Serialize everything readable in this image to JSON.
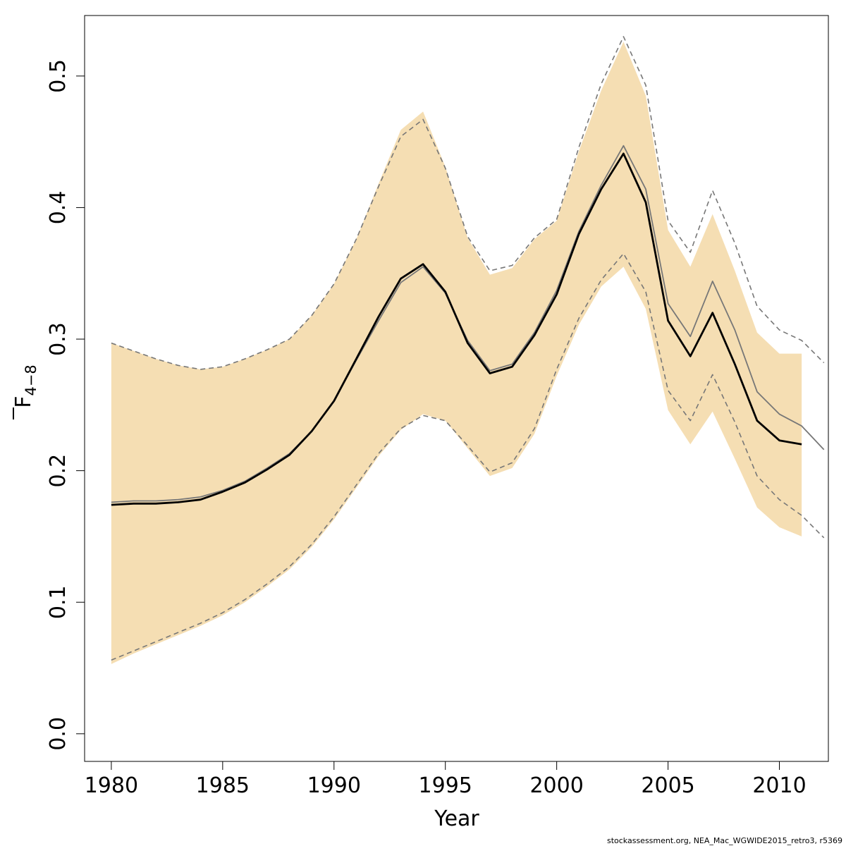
{
  "chart_data": {
    "type": "line",
    "xlabel": "Year",
    "ylabel_main": "F",
    "ylabel_sub": "4−8",
    "footer": "stockassessment.org, NEA_Mac_WGWIDE2015_retro3, r5369",
    "xlim": [
      1978.8,
      2012.2
    ],
    "ylim": [
      -0.021,
      0.546
    ],
    "x_ticks": [
      1980,
      1985,
      1990,
      1995,
      2000,
      2005,
      2010
    ],
    "x_tick_labels": [
      "1980",
      "1985",
      "1990",
      "1995",
      "2000",
      "2005",
      "2010"
    ],
    "y_ticks": [
      0.0,
      0.1,
      0.2,
      0.3,
      0.4,
      0.5
    ],
    "y_tick_labels": [
      "0.0",
      "0.1",
      "0.2",
      "0.3",
      "0.4",
      "0.5"
    ],
    "colors": {
      "band": "#f5deb3",
      "estimate": "#000000",
      "previous": "#777777",
      "previous_ci": "#777777"
    },
    "band": {
      "x": [
        1980,
        1981,
        1982,
        1983,
        1984,
        1985,
        1986,
        1987,
        1988,
        1989,
        1990,
        1991,
        1992,
        1993,
        1994,
        1995,
        1996,
        1997,
        1998,
        1999,
        2000,
        2001,
        2002,
        2003,
        2004,
        2005,
        2006,
        2007,
        2008,
        2009,
        2010,
        2011
      ],
      "lower": [
        0.053,
        0.061,
        0.068,
        0.075,
        0.082,
        0.09,
        0.1,
        0.112,
        0.125,
        0.142,
        0.163,
        0.187,
        0.211,
        0.231,
        0.243,
        0.238,
        0.217,
        0.196,
        0.202,
        0.228,
        0.272,
        0.311,
        0.34,
        0.355,
        0.323,
        0.246,
        0.22,
        0.245,
        0.209,
        0.172,
        0.157,
        0.15
      ],
      "upper": [
        0.297,
        0.291,
        0.285,
        0.28,
        0.277,
        0.279,
        0.285,
        0.292,
        0.3,
        0.318,
        0.342,
        0.376,
        0.418,
        0.459,
        0.473,
        0.431,
        0.377,
        0.349,
        0.354,
        0.376,
        0.39,
        0.443,
        0.489,
        0.526,
        0.485,
        0.383,
        0.355,
        0.395,
        0.352,
        0.305,
        0.289,
        0.289
      ]
    },
    "series": [
      {
        "role": "estimate",
        "x": [
          1980,
          1981,
          1982,
          1983,
          1984,
          1985,
          1986,
          1987,
          1988,
          1989,
          1990,
          1991,
          1992,
          1993,
          1994,
          1995,
          1996,
          1997,
          1998,
          1999,
          2000,
          2001,
          2002,
          2003,
          2004,
          2005,
          2006,
          2007,
          2008,
          2009,
          2010,
          2011
        ],
        "values": [
          0.174,
          0.175,
          0.175,
          0.176,
          0.178,
          0.184,
          0.191,
          0.201,
          0.212,
          0.23,
          0.253,
          0.285,
          0.317,
          0.346,
          0.357,
          0.336,
          0.297,
          0.274,
          0.279,
          0.303,
          0.334,
          0.38,
          0.414,
          0.441,
          0.404,
          0.314,
          0.287,
          0.32,
          0.281,
          0.238,
          0.223,
          0.22
        ]
      },
      {
        "role": "previous",
        "x": [
          1980,
          1981,
          1982,
          1983,
          1984,
          1985,
          1986,
          1987,
          1988,
          1989,
          1990,
          1991,
          1992,
          1993,
          1994,
          1995,
          1996,
          1997,
          1998,
          1999,
          2000,
          2001,
          2002,
          2003,
          2004,
          2005,
          2006,
          2007,
          2008,
          2009,
          2010,
          2011,
          2012
        ],
        "values": [
          0.176,
          0.177,
          0.177,
          0.178,
          0.18,
          0.185,
          0.192,
          0.202,
          0.213,
          0.23,
          0.253,
          0.284,
          0.314,
          0.343,
          0.355,
          0.335,
          0.299,
          0.276,
          0.281,
          0.305,
          0.337,
          0.382,
          0.417,
          0.447,
          0.414,
          0.327,
          0.302,
          0.344,
          0.307,
          0.26,
          0.243,
          0.234,
          0.216
        ]
      },
      {
        "role": "previous_lower",
        "x": [
          1980,
          1981,
          1982,
          1983,
          1984,
          1985,
          1986,
          1987,
          1988,
          1989,
          1990,
          1991,
          1992,
          1993,
          1994,
          1995,
          1996,
          1997,
          1998,
          1999,
          2000,
          2001,
          2002,
          2003,
          2004,
          2005,
          2006,
          2007,
          2008,
          2009,
          2010,
          2011,
          2012
        ],
        "values": [
          0.056,
          0.063,
          0.07,
          0.077,
          0.084,
          0.092,
          0.102,
          0.114,
          0.127,
          0.144,
          0.165,
          0.189,
          0.213,
          0.232,
          0.242,
          0.238,
          0.219,
          0.199,
          0.206,
          0.232,
          0.277,
          0.316,
          0.345,
          0.365,
          0.336,
          0.261,
          0.238,
          0.273,
          0.237,
          0.196,
          0.178,
          0.166,
          0.149
        ]
      },
      {
        "role": "previous_upper",
        "x": [
          1980,
          1981,
          1982,
          1983,
          1984,
          1985,
          1986,
          1987,
          1988,
          1989,
          1990,
          1991,
          1992,
          1993,
          1994,
          1995,
          1996,
          1997,
          1998,
          1999,
          2000,
          2001,
          2002,
          2003,
          2004,
          2005,
          2006,
          2007,
          2008,
          2009,
          2010,
          2011,
          2012
        ],
        "values": [
          0.297,
          0.291,
          0.285,
          0.28,
          0.277,
          0.279,
          0.285,
          0.292,
          0.3,
          0.318,
          0.342,
          0.376,
          0.416,
          0.454,
          0.467,
          0.43,
          0.378,
          0.352,
          0.356,
          0.377,
          0.391,
          0.446,
          0.494,
          0.53,
          0.493,
          0.39,
          0.366,
          0.413,
          0.373,
          0.325,
          0.307,
          0.299,
          0.282
        ]
      }
    ]
  }
}
